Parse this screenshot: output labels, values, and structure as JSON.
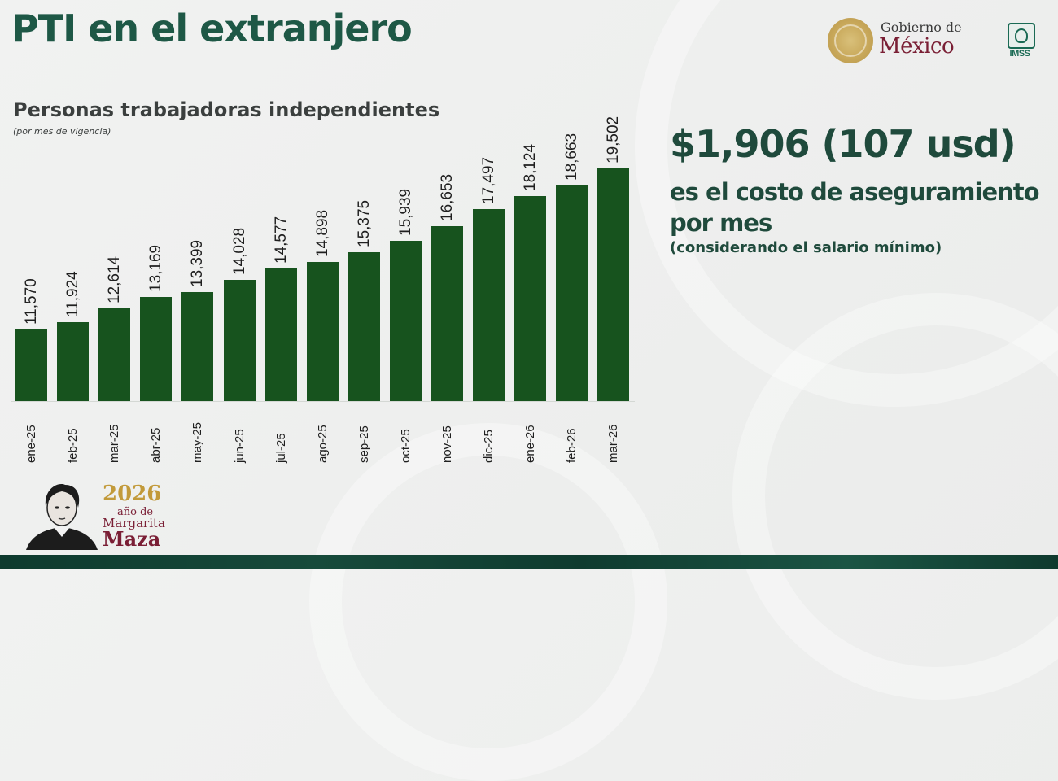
{
  "header": {
    "title": "PTI en el extranjero",
    "logo_line1": "Gobierno de",
    "logo_line2": "México",
    "imss_label": "IMSS"
  },
  "chart_heading": {
    "title": "Personas trabajadoras independientes",
    "note": "(por mes de vigencia)"
  },
  "info": {
    "price": "$1,906 (107 usd)",
    "desc": "es el costo de aseguramiento por mes",
    "note": "(considerando el salario mínimo)"
  },
  "footer_badge": {
    "year": "2026",
    "line1": "año de",
    "line2": "Margarita",
    "line3": "Maza"
  },
  "colors": {
    "bar": "#17531e",
    "title": "#1e5846",
    "accent_wine": "#7a1f35",
    "accent_gold": "#c29a3a"
  },
  "chart_data": {
    "type": "bar",
    "title": "Personas trabajadoras independientes",
    "subtitle": "(por mes de vigencia)",
    "xlabel": "",
    "ylabel": "",
    "categories": [
      "ene-25",
      "feb-25",
      "mar-25",
      "abr-25",
      "may-25",
      "jun-25",
      "jul-25",
      "ago-25",
      "sep-25",
      "oct-25",
      "nov-25",
      "dic-25",
      "ene-26",
      "feb-26",
      "mar-26"
    ],
    "values": [
      11570,
      11924,
      12614,
      13169,
      13399,
      14028,
      14577,
      14898,
      15375,
      15939,
      16653,
      17497,
      18124,
      18663,
      19502
    ],
    "value_labels": [
      "11,570",
      "11,924",
      "12,614",
      "13,169",
      "13,399",
      "14,028",
      "14,577",
      "14,898",
      "15,375",
      "15,939",
      "16,653",
      "17,497",
      "18,124",
      "18,663",
      "19,502"
    ],
    "ylim": [
      8044,
      19502
    ],
    "grid": false,
    "legend": null,
    "data_labels": "rotated -90° above bars",
    "category_labels": "rotated -90° below axis"
  }
}
